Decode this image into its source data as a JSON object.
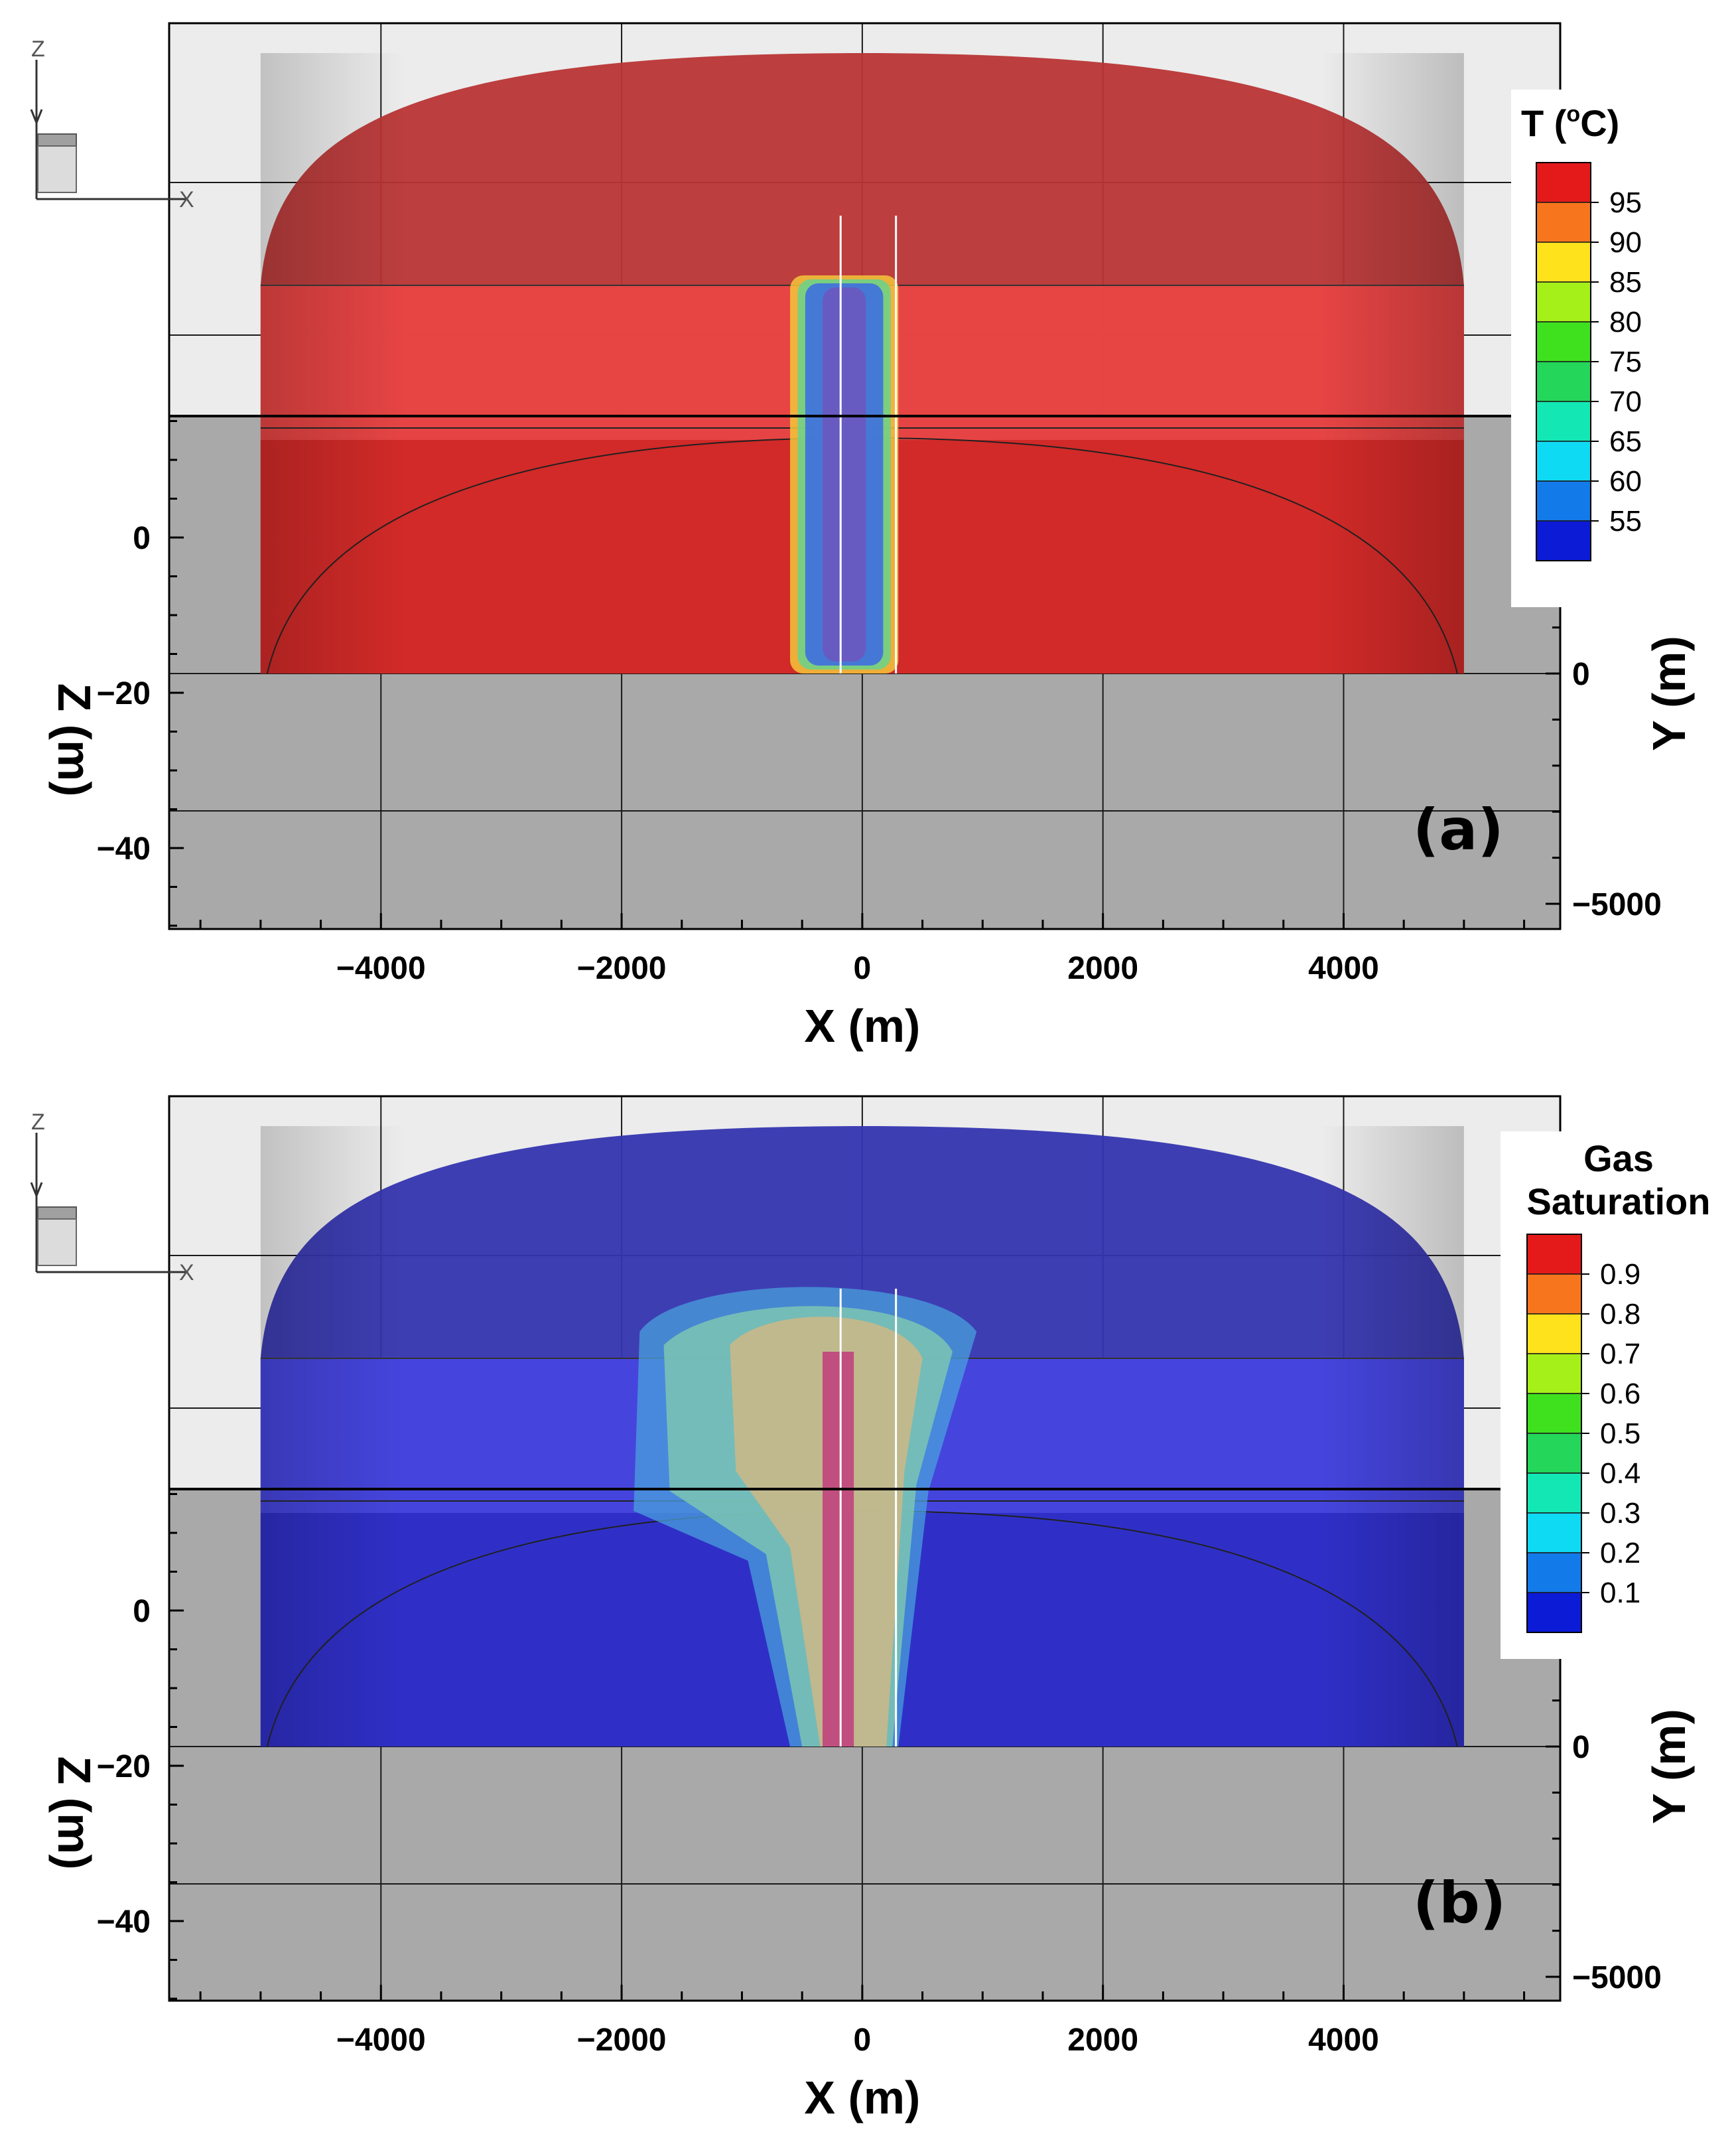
{
  "chart_data": [
    {
      "type": "heatmap",
      "panel_label": "(a)",
      "variable": "temperature",
      "legend": {
        "title": "T (°C)",
        "title_main": "T (",
        "title_sup": "o",
        "title_tail": "C)",
        "ticks": [
          "95",
          "90",
          "85",
          "80",
          "75",
          "70",
          "65",
          "60",
          "55"
        ],
        "colors": [
          "#e41a1a",
          "#f7761d",
          "#fde21c",
          "#a6f01a",
          "#3fe11f",
          "#24d65a",
          "#13e8b5",
          "#0fdaf4",
          "#127be9",
          "#0c1bd6"
        ]
      },
      "xlabel": "X (m)",
      "zlabel": "Z (m)",
      "ylabel": "Y (m)",
      "x_ticks": [
        "-4000",
        "-2000",
        "0",
        "2000",
        "4000"
      ],
      "x_values": [
        -4000,
        -2000,
        0,
        2000,
        4000
      ],
      "z_ticks": [
        "0",
        "-20",
        "-40"
      ],
      "z_values": [
        0,
        -20,
        -40
      ],
      "y_ticks": [
        "0",
        "-5000"
      ],
      "y_values": [
        0,
        -5000
      ],
      "x_range": [
        -5760,
        5800
      ],
      "domain_x_range": [
        -5000,
        5000
      ],
      "domain_color": "#d22a28",
      "domain_top_color": "#b93535",
      "layer_color": "#e84545",
      "plume": {
        "x_range": [
          -600,
          300
        ],
        "colors": [
          "#f5c63a",
          "#66d48c",
          "#3f6fe0",
          "#6a58c0"
        ]
      },
      "well_x": [
        -180,
        280
      ],
      "triad": {
        "z": "Z",
        "x": "X"
      }
    },
    {
      "type": "heatmap",
      "panel_label": "(b)",
      "variable": "gas_saturation",
      "legend": {
        "title": "Gas Saturation",
        "title_line1": "Gas",
        "title_line2": "Saturation",
        "ticks": [
          "0.9",
          "0.8",
          "0.7",
          "0.6",
          "0.5",
          "0.4",
          "0.3",
          "0.2",
          "0.1"
        ],
        "colors": [
          "#e41a1a",
          "#f7761d",
          "#fde21c",
          "#a6f01a",
          "#3fe11f",
          "#24d65a",
          "#13e8b5",
          "#0fdaf4",
          "#127be9",
          "#0c1bd6"
        ]
      },
      "xlabel": "X (m)",
      "zlabel": "Z (m)",
      "ylabel": "Y (m)",
      "x_ticks": [
        "-4000",
        "-2000",
        "0",
        "2000",
        "4000"
      ],
      "x_values": [
        -4000,
        -2000,
        0,
        2000,
        4000
      ],
      "z_ticks": [
        "0",
        "-20",
        "-40"
      ],
      "z_values": [
        0,
        -20,
        -40
      ],
      "y_ticks": [
        "0",
        "-5000"
      ],
      "y_values": [
        0,
        -5000
      ],
      "x_range": [
        -5760,
        5800
      ],
      "domain_x_range": [
        -5000,
        5000
      ],
      "domain_color": "#2f2fc8",
      "domain_top_color": "#3535b0",
      "layer_color": "#4646e0",
      "plume": {
        "x_range": [
          -2000,
          1000
        ],
        "colors": [
          "#4aa0dc",
          "#7fc9b0",
          "#c9b88a",
          "#c03c7c"
        ]
      },
      "well_x": [
        -180,
        280
      ],
      "triad": {
        "z": "Z",
        "x": "X"
      }
    }
  ]
}
